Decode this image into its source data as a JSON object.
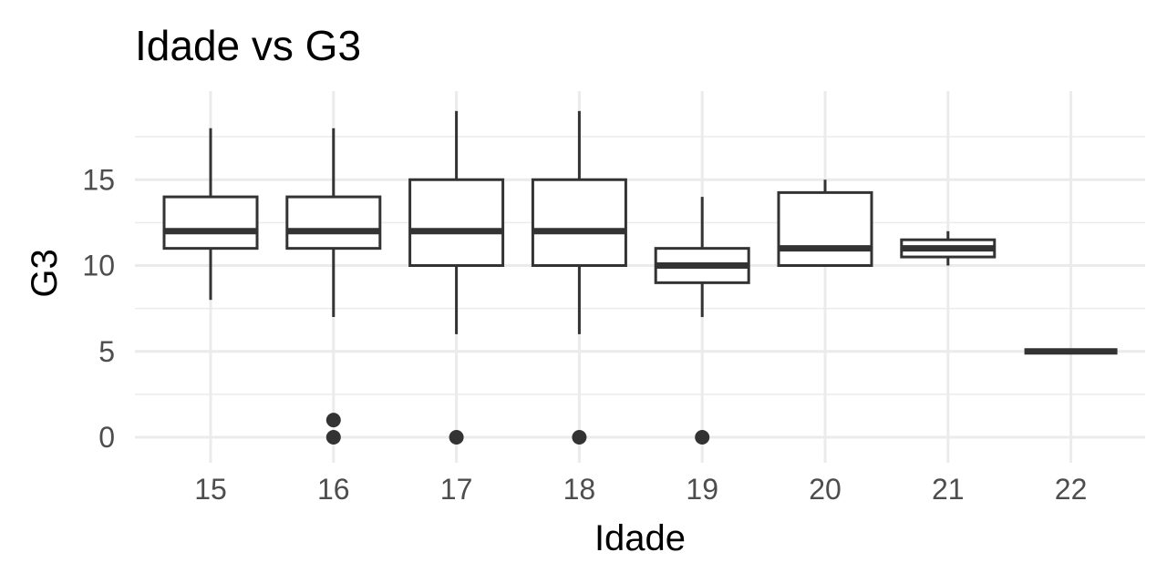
{
  "chart_data": {
    "type": "boxplot",
    "title": "Idade vs  G3",
    "xlabel": "Idade",
    "ylabel": "G3",
    "ylim": [
      -1.5,
      20
    ],
    "yticks": [
      0,
      5,
      10,
      15
    ],
    "grid": true,
    "categories": [
      "15",
      "16",
      "17",
      "18",
      "19",
      "20",
      "21",
      "22"
    ],
    "boxes": [
      {
        "x": "15",
        "min": 8,
        "q1": 11,
        "median": 12,
        "q3": 14,
        "max": 18,
        "outliers": []
      },
      {
        "x": "16",
        "min": 7,
        "q1": 11,
        "median": 12,
        "q3": 14,
        "max": 18,
        "outliers": [
          1,
          0
        ]
      },
      {
        "x": "17",
        "min": 6,
        "q1": 10,
        "median": 12,
        "q3": 15,
        "max": 19,
        "outliers": [
          0
        ]
      },
      {
        "x": "18",
        "min": 6,
        "q1": 10,
        "median": 12,
        "q3": 15,
        "max": 19,
        "outliers": [
          0
        ]
      },
      {
        "x": "19",
        "min": 7,
        "q1": 9,
        "median": 10,
        "q3": 11,
        "max": 14,
        "outliers": [
          0
        ]
      },
      {
        "x": "20",
        "min": 10,
        "q1": 10,
        "median": 11,
        "q3": 14.25,
        "max": 15,
        "outliers": []
      },
      {
        "x": "21",
        "min": 10,
        "q1": 10.5,
        "median": 11,
        "q3": 11.5,
        "max": 12,
        "outliers": []
      },
      {
        "x": "22",
        "min": 5,
        "q1": 5,
        "median": 5,
        "q3": 5,
        "max": 5,
        "outliers": []
      }
    ],
    "colors": {
      "box_line": "#333333",
      "grid": "#ebebeb",
      "background": "#ffffff"
    }
  }
}
